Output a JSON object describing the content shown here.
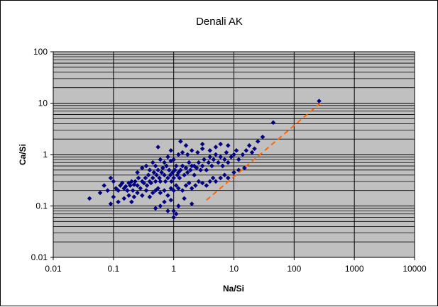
{
  "chart_data": {
    "type": "scatter",
    "title": "Denali AK",
    "xlabel": "Na/Si",
    "ylabel": "Ca/Si",
    "x_scale": "log",
    "y_scale": "log",
    "xlim": [
      0.01,
      10000
    ],
    "ylim": [
      0.01,
      100
    ],
    "x_ticks": [
      "0.01",
      "0.1",
      "1",
      "10",
      "100",
      "1000",
      "10000"
    ],
    "y_ticks": [
      "0.01",
      "0.1",
      "1",
      "10",
      "100"
    ],
    "grid": true,
    "legend": "none",
    "colors": {
      "plot_area": "#c0c0c0",
      "marker": "#000080",
      "trend_line": "#ff6600",
      "grid": "#000000"
    },
    "trend_line": {
      "style": "dashed",
      "x": [
        3.5,
        300
      ],
      "y": [
        0.13,
        11
      ]
    },
    "series": [
      {
        "marker": "diamond",
        "x": [
          0.04,
          0.06,
          0.07,
          0.08,
          0.09,
          0.1,
          0.11,
          0.12,
          0.13,
          0.14,
          0.15,
          0.16,
          0.17,
          0.18,
          0.19,
          0.2,
          0.21,
          0.22,
          0.23,
          0.25,
          0.26,
          0.28,
          0.3,
          0.32,
          0.34,
          0.36,
          0.38,
          0.4,
          0.42,
          0.45,
          0.47,
          0.5,
          0.52,
          0.55,
          0.58,
          0.6,
          0.63,
          0.66,
          0.7,
          0.73,
          0.76,
          0.8,
          0.84,
          0.88,
          0.92,
          0.96,
          1.0,
          1.05,
          1.1,
          1.15,
          1.2,
          1.25,
          1.3,
          1.4,
          1.5,
          1.6,
          1.7,
          1.8,
          1.9,
          2.0,
          2.2,
          2.4,
          2.6,
          2.8,
          3.0,
          3.2,
          3.5,
          3.8,
          4.0,
          4.3,
          4.6,
          5.0,
          5.5,
          6.0,
          6.5,
          7.0,
          7.5,
          8.0,
          9.0,
          10.0,
          11.0,
          12.0,
          14.0,
          16.0,
          18.0,
          20.0,
          22.0,
          25.0,
          30.0,
          45.0,
          260.0,
          0.09,
          0.1,
          0.12,
          0.15,
          0.18,
          0.2,
          0.22,
          0.25,
          0.3,
          0.35,
          0.4,
          0.45,
          0.5,
          0.55,
          0.6,
          0.7,
          0.8,
          0.9,
          1.0,
          1.1,
          1.2,
          1.4,
          1.6,
          1.8,
          2.0,
          2.3,
          2.6,
          3.0,
          3.5,
          4.0,
          4.5,
          5.0,
          6.0,
          7.0,
          8.0,
          10.0,
          12.0,
          15.0,
          0.25,
          0.3,
          0.35,
          0.4,
          0.45,
          0.5,
          0.6,
          0.7,
          0.8,
          0.9,
          1.0,
          1.2,
          1.4,
          1.7,
          2.0,
          2.5,
          3.0,
          4.0,
          5.0,
          6.0,
          8.0,
          0.5,
          0.6,
          0.7,
          0.8,
          0.9,
          1.0,
          1.2,
          1.5,
          2.0,
          0.55,
          0.9,
          1.0,
          1.1,
          1.3,
          1.6,
          2.2,
          3.0
        ],
        "y": [
          0.14,
          0.18,
          0.25,
          0.2,
          0.35,
          0.3,
          0.22,
          0.2,
          0.25,
          0.28,
          0.22,
          0.24,
          0.2,
          0.28,
          0.25,
          0.3,
          0.2,
          0.26,
          0.3,
          0.25,
          0.35,
          0.22,
          0.3,
          0.28,
          0.35,
          0.25,
          0.4,
          0.3,
          0.28,
          0.35,
          0.45,
          0.3,
          0.4,
          0.5,
          0.35,
          0.3,
          0.45,
          0.55,
          0.4,
          0.3,
          0.6,
          0.35,
          0.5,
          0.4,
          0.3,
          0.45,
          0.35,
          0.5,
          0.6,
          0.4,
          0.45,
          0.35,
          0.5,
          0.6,
          0.4,
          0.55,
          0.45,
          0.7,
          0.5,
          0.6,
          0.4,
          0.55,
          0.7,
          0.5,
          0.6,
          0.8,
          0.5,
          0.7,
          0.9,
          0.6,
          0.8,
          1.0,
          0.7,
          0.9,
          0.6,
          0.8,
          1.1,
          0.7,
          0.9,
          1.0,
          1.2,
          0.8,
          1.0,
          1.2,
          1.5,
          1.1,
          1.3,
          1.8,
          2.2,
          4.2,
          11.0,
          0.11,
          0.15,
          0.12,
          0.14,
          0.16,
          0.12,
          0.15,
          0.18,
          0.16,
          0.2,
          0.15,
          0.18,
          0.2,
          0.22,
          0.18,
          0.2,
          0.16,
          0.22,
          0.2,
          0.25,
          0.22,
          0.2,
          0.25,
          0.28,
          0.22,
          0.25,
          0.3,
          0.28,
          0.25,
          0.3,
          0.35,
          0.3,
          0.35,
          0.4,
          0.35,
          0.45,
          0.5,
          0.55,
          0.45,
          0.55,
          0.6,
          0.5,
          0.7,
          0.6,
          0.8,
          0.7,
          0.9,
          0.75,
          0.8,
          1.0,
          1.1,
          1.0,
          1.2,
          1.1,
          1.3,
          1.2,
          1.4,
          1.6,
          1.5,
          0.09,
          0.1,
          0.12,
          0.08,
          0.13,
          0.06,
          0.1,
          0.14,
          0.11,
          1.4,
          1.2,
          0.08,
          0.07,
          1.8,
          1.5,
          0.6,
          1.6
        ]
      }
    ]
  }
}
